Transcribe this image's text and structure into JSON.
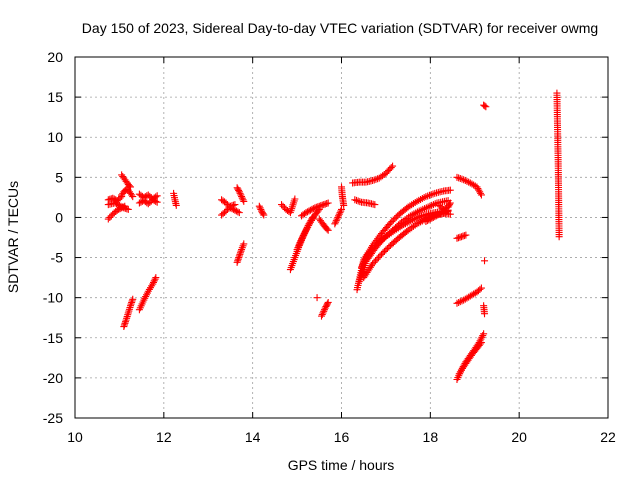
{
  "chart_data": {
    "type": "scatter",
    "title": "Day 150 of 2023, Sidereal Day-to-day VTEC variation (SDTVAR) for receiver owmg",
    "xlabel": "GPS time / hours",
    "ylabel": "SDTVAR / TECUs",
    "xlim": [
      10,
      22
    ],
    "ylim": [
      -25,
      20
    ],
    "x_ticks": [
      10,
      12,
      14,
      16,
      18,
      20,
      22
    ],
    "y_ticks": [
      -25,
      -20,
      -15,
      -10,
      -5,
      0,
      5,
      10,
      15,
      20
    ],
    "grid": true,
    "marker": "plus",
    "color": "#ff0000",
    "segments": [
      {
        "x": [
          10.75,
          10.85,
          10.95,
          11.05,
          11.12
        ],
        "y": [
          -0.2,
          0.4,
          0.9,
          1.2,
          1.4
        ]
      },
      {
        "x": [
          10.75,
          10.85,
          10.95,
          11.05
        ],
        "y": [
          2.2,
          2.4,
          2.1,
          2.6
        ]
      },
      {
        "x": [
          10.75,
          10.9,
          11.0,
          11.1,
          11.2
        ],
        "y": [
          1.6,
          1.8,
          1.5,
          1.2,
          1.0
        ]
      },
      {
        "x": [
          11.05,
          11.1,
          11.15,
          11.2,
          11.25
        ],
        "y": [
          5.3,
          4.9,
          4.5,
          4.1,
          3.8
        ]
      },
      {
        "x": [
          11.05,
          11.1,
          11.15,
          11.2,
          11.25,
          11.3
        ],
        "y": [
          2.8,
          3.2,
          3.5,
          3.4,
          3.0,
          2.6
        ]
      },
      {
        "x": [
          11.1,
          11.15,
          11.2,
          11.25,
          11.3
        ],
        "y": [
          -13.6,
          -12.8,
          -11.9,
          -11.0,
          -10.2
        ]
      },
      {
        "x": [
          11.45,
          11.55,
          11.65,
          11.75,
          11.82
        ],
        "y": [
          -11.5,
          -10.3,
          -9.2,
          -8.3,
          -7.5
        ]
      },
      {
        "x": [
          11.45,
          11.55,
          11.65,
          11.75,
          11.85
        ],
        "y": [
          2.9,
          2.5,
          2.8,
          2.3,
          2.7
        ]
      },
      {
        "x": [
          11.45,
          11.55,
          11.65,
          11.75,
          11.85
        ],
        "y": [
          1.8,
          2.1,
          1.7,
          2.2,
          1.9
        ]
      },
      {
        "x": [
          12.22,
          12.25,
          12.28
        ],
        "y": [
          3.0,
          2.2,
          1.5
        ]
      },
      {
        "x": [
          13.3,
          13.4,
          13.5,
          13.6,
          13.7
        ],
        "y": [
          2.2,
          1.8,
          1.2,
          0.9,
          0.6
        ]
      },
      {
        "x": [
          13.3,
          13.4,
          13.5,
          13.6
        ],
        "y": [
          0.3,
          0.8,
          1.4,
          1.6
        ]
      },
      {
        "x": [
          13.65,
          13.7,
          13.75,
          13.8
        ],
        "y": [
          3.7,
          3.2,
          2.6,
          2.0
        ]
      },
      {
        "x": [
          13.65,
          13.7,
          13.75,
          13.8
        ],
        "y": [
          -5.6,
          -4.8,
          -4.0,
          -3.3
        ]
      },
      {
        "x": [
          14.15,
          14.2,
          14.25
        ],
        "y": [
          1.4,
          0.8,
          0.3
        ]
      },
      {
        "x": [
          14.65,
          14.75,
          14.85,
          14.95
        ],
        "y": [
          1.6,
          1.0,
          0.6,
          2.3
        ]
      },
      {
        "x": [
          14.85,
          14.95,
          15.05,
          15.15,
          15.25,
          15.35
        ],
        "y": [
          -6.5,
          -5.0,
          -3.5,
          -2.2,
          -1.0,
          0.0
        ]
      },
      {
        "x": [
          15.0,
          15.1,
          15.2,
          15.3,
          15.4,
          15.5
        ],
        "y": [
          -4.0,
          -2.7,
          -1.6,
          -0.6,
          0.3,
          1.0
        ]
      },
      {
        "x": [
          15.1,
          15.2,
          15.3,
          15.4,
          15.5,
          15.6,
          15.7
        ],
        "y": [
          0.2,
          0.6,
          0.9,
          1.2,
          1.4,
          1.6,
          1.8
        ]
      },
      {
        "x": [
          15.5,
          15.58,
          15.65,
          15.7
        ],
        "y": [
          -0.2,
          -0.8,
          -1.3,
          -1.6
        ]
      },
      {
        "x": [
          15.45
        ],
        "y": [
          -10.0
        ]
      },
      {
        "x": [
          15.55,
          15.6,
          15.65,
          15.7
        ],
        "y": [
          -12.3,
          -11.7,
          -11.1,
          -10.6
        ]
      },
      {
        "x": [
          15.85,
          15.9,
          15.95,
          16.0
        ],
        "y": [
          -0.8,
          -0.2,
          0.4,
          1.0
        ]
      },
      {
        "x": [
          16.0,
          16.02,
          16.05
        ],
        "y": [
          3.8,
          2.6,
          1.5
        ]
      },
      {
        "x": [
          16.25,
          16.4,
          16.55,
          16.7,
          16.85,
          17.0,
          17.15
        ],
        "y": [
          4.3,
          4.4,
          4.4,
          4.6,
          4.9,
          5.5,
          6.4
        ]
      },
      {
        "x": [
          16.3,
          16.45,
          16.6,
          16.75
        ],
        "y": [
          2.2,
          1.9,
          1.8,
          1.6
        ]
      },
      {
        "x": [
          16.35,
          16.5,
          16.7,
          16.9,
          17.1,
          17.3,
          17.5,
          17.7,
          17.9,
          18.1,
          18.3,
          18.45
        ],
        "y": [
          -9.0,
          -5.3,
          -3.5,
          -2.0,
          -0.7,
          0.4,
          1.3,
          2.0,
          2.6,
          3.0,
          3.3,
          3.4
        ]
      },
      {
        "x": [
          16.4,
          16.55,
          16.75,
          16.95,
          17.15,
          17.35,
          17.55,
          17.75,
          17.95,
          18.15,
          18.4
        ],
        "y": [
          -8.0,
          -5.5,
          -3.9,
          -2.6,
          -1.6,
          -0.6,
          0.2,
          0.8,
          1.3,
          1.8,
          2.1
        ]
      },
      {
        "x": [
          16.45,
          16.6,
          16.8,
          17.0,
          17.2,
          17.4,
          17.6,
          17.8,
          18.0,
          18.2,
          18.4
        ],
        "y": [
          -6.2,
          -4.5,
          -3.3,
          -2.4,
          -1.6,
          -0.9,
          -0.3,
          0.2,
          0.5,
          0.7,
          0.9
        ]
      },
      {
        "x": [
          16.5,
          16.7,
          16.9,
          17.1,
          17.3,
          17.5,
          17.7,
          17.9,
          18.1,
          18.3,
          18.45
        ],
        "y": [
          -7.5,
          -5.8,
          -4.6,
          -3.5,
          -2.5,
          -1.6,
          -0.8,
          -0.2,
          0.3,
          0.5,
          0.4
        ]
      },
      {
        "x": [
          17.9,
          18.0,
          18.1,
          18.2,
          18.3,
          18.4
        ],
        "y": [
          -0.5,
          -0.2,
          0.1,
          0.4,
          0.5,
          0.8
        ]
      },
      {
        "x": [
          18.2,
          18.3,
          18.4,
          18.45
        ],
        "y": [
          1.5,
          1.0,
          1.3,
          1.8
        ]
      },
      {
        "x": [
          18.6,
          18.75,
          18.9,
          19.05,
          19.15
        ],
        "y": [
          5.0,
          4.7,
          4.3,
          3.8,
          2.8
        ]
      },
      {
        "x": [
          18.6,
          18.7,
          18.8
        ],
        "y": [
          -2.6,
          -2.4,
          -2.2
        ]
      },
      {
        "x": [
          18.6,
          18.75,
          18.9,
          19.05,
          19.15
        ],
        "y": [
          -10.7,
          -10.3,
          -9.8,
          -9.3,
          -8.8
        ]
      },
      {
        "x": [
          18.6,
          18.7,
          18.8,
          18.9,
          19.0,
          19.1,
          19.2
        ],
        "y": [
          -20.2,
          -19.0,
          -18.0,
          -17.2,
          -16.4,
          -15.6,
          -14.5
        ]
      },
      {
        "x": [
          18.65,
          18.75,
          18.85,
          18.95,
          19.05,
          19.15
        ],
        "y": [
          -19.5,
          -18.6,
          -17.8,
          -17.0,
          -16.3,
          -15.6
        ]
      },
      {
        "x": [
          19.2,
          19.25
        ],
        "y": [
          14.0,
          13.8
        ]
      },
      {
        "x": [
          19.22
        ],
        "y": [
          -5.4
        ]
      },
      {
        "x": [
          19.2,
          19.22
        ],
        "y": [
          -11.0,
          -12.0
        ]
      },
      {
        "x": [
          20.85,
          20.88,
          20.9
        ],
        "y": [
          15.5,
          6.4,
          -2.4
        ]
      }
    ]
  }
}
